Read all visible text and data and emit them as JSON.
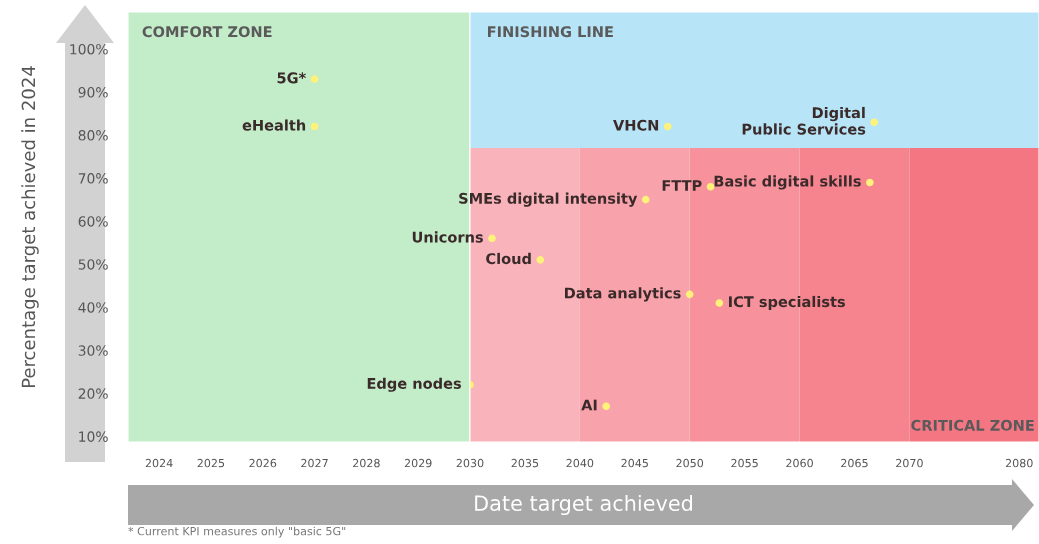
{
  "chart_data": [
    {
      "type": "scatter",
      "ylabel": "Percentage target achieved in 2024",
      "x": [
        2027,
        2027
      ],
      "series": [
        {
          "color": "#fff27a",
          "values": [
            93,
            82
          ]
        }
      ],
      "marker": "circle",
      "xlim": [
        2023.4,
        2030
      ],
      "xticks": [
        2024,
        2025,
        2026,
        2027,
        2028,
        2029
      ],
      "ylim": [
        8.7,
        108.6
      ],
      "yticks": [
        {
          "value": 10,
          "label": "10%"
        },
        {
          "value": 20,
          "label": "20%"
        },
        {
          "value": 30,
          "label": "30%"
        },
        {
          "value": 40,
          "label": "40%"
        },
        {
          "value": 50,
          "label": "50%"
        },
        {
          "value": 60,
          "label": "60%"
        },
        {
          "value": 70,
          "label": "70%"
        },
        {
          "value": 80,
          "label": "80%"
        },
        {
          "value": 90,
          "label": "90%"
        },
        {
          "value": 100,
          "label": "100%"
        }
      ],
      "bands": [
        {
          "axis": "x",
          "from": 2023.4,
          "to": 2030,
          "color": "#c3ecc9",
          "label": "COMFORT ZONE"
        }
      ],
      "annotations": [
        {
          "text": "5G*",
          "x": 2027,
          "y": 93
        },
        {
          "text": "eHealth",
          "x": 2027,
          "y": 82
        },
        "* Current KPI measures only \"basic 5G\""
      ]
    },
    {
      "type": "scatter",
      "xlabel": "Date target achieved",
      "x": [
        2048,
        2066.8,
        2051.9,
        2066.4,
        2046,
        2032,
        2036.4,
        2050,
        2052.7,
        2030,
        2042.4
      ],
      "series": [
        {
          "color": "#fff27a",
          "values": [
            82,
            83,
            68,
            69,
            65,
            56,
            51,
            43,
            41,
            22,
            17
          ]
        }
      ],
      "marker": "circle",
      "xlim": [
        2030,
        2081.8
      ],
      "xticks": [
        2030,
        2035,
        2040,
        2045,
        2050,
        2055,
        2060,
        2065,
        2070,
        2080
      ],
      "ylim": [
        8.7,
        108.6
      ],
      "tick_labels": "x",
      "bands": [
        {
          "axis": "x",
          "from": 2030,
          "to": 2040,
          "color": "#f9b3bb"
        },
        {
          "axis": "x",
          "from": 2040,
          "to": 2050,
          "color": "#f8a2ab"
        },
        {
          "axis": "x",
          "from": 2050,
          "to": 2060,
          "color": "#f7929c"
        },
        {
          "axis": "x",
          "from": 2060,
          "to": 2070,
          "color": "#f6848f"
        },
        {
          "axis": "x",
          "from": 2070,
          "to": 2081.8,
          "color": "#f57683",
          "label": "CRITICAL ZONE"
        },
        {
          "axis": "y",
          "from": 77,
          "to": 108.6,
          "color": "#b8e4f7",
          "label": "FINISHING LINE"
        }
      ],
      "annotations": [
        {
          "text": "VHCN",
          "x": 2048,
          "y": 82
        },
        {
          "text": "Digital\nPublic Services",
          "x": 2066.8,
          "y": 83
        },
        {
          "text": "FTTP",
          "x": 2051.9,
          "y": 68
        },
        {
          "text": "Basic digital skills",
          "x": 2066.4,
          "y": 69
        },
        {
          "text": "SMEs digital intensity",
          "x": 2046,
          "y": 65
        },
        {
          "text": "Unicorns",
          "x": 2032,
          "y": 56
        },
        {
          "text": "Cloud",
          "x": 2036.4,
          "y": 51
        },
        {
          "text": "Data analytics",
          "x": 2050,
          "y": 43
        },
        {
          "text": "ICT specialists",
          "x": 2052.7,
          "y": 41
        },
        {
          "text": "Edge nodes",
          "x": 2030,
          "y": 22
        },
        {
          "text": "AI",
          "x": 2042.4,
          "y": 17
        }
      ]
    }
  ]
}
